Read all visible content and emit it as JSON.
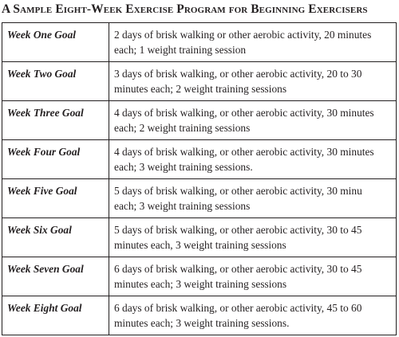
{
  "title": "A Sample Eight-Week Exercise Program for Beginning Exercisers",
  "rows": [
    {
      "week": "Week One Goal",
      "line1": "2 days of brisk walking or other aerobic activity, 20 minutes",
      "line2": "each; 1 weight training session"
    },
    {
      "week": "Week Two Goal",
      "line1": "3 days of brisk walking, or other aerobic activity, 20 to 30",
      "line2": "minutes each; 2 weight training sessions"
    },
    {
      "week": "Week Three Goal",
      "line1": "4 days of brisk walking, or other aerobic activity, 30 minutes",
      "line2": "each; 2 weight training sessions"
    },
    {
      "week": "Week Four Goal",
      "line1": "4 days of brisk walking, or other aerobic activity, 30 minutes",
      "line2": "each; 3 weight training sessions."
    },
    {
      "week": "Week Five Goal",
      "line1": "5 days of brisk walking, or other aerobic activity, 30 minu",
      "line2": "each; 3 weight training sessions"
    },
    {
      "week": "Week Six Goal",
      "line1": "5 days of brisk walking, or other aerobic activity, 30 to 45",
      "line2": "minutes each, 3 weight training sessions"
    },
    {
      "week": "Week Seven Goal",
      "line1": "6 days of brisk walking, or other aerobic activity, 30 to 45",
      "line2": "minutes each; 3 weight training sessions"
    },
    {
      "week": "Week Eight Goal",
      "line1": "6 days of brisk walking, or other aerobic activity, 45 to 60",
      "line2": "minutes each; 3 weight training sessions."
    }
  ]
}
